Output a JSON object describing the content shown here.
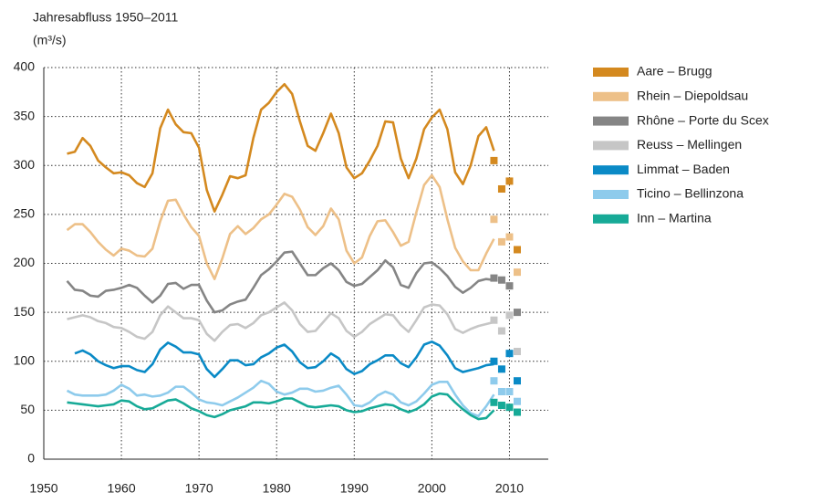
{
  "chart_data": {
    "type": "line",
    "title": "Jahresabfluss 1950–2011",
    "y_label": "(m³/s)",
    "xlim": [
      1950,
      2015
    ],
    "ylim": [
      0,
      400
    ],
    "xticks": [
      1950,
      1960,
      1970,
      1980,
      1990,
      2000,
      2010
    ],
    "yticks": [
      0,
      50,
      100,
      150,
      200,
      250,
      300,
      350,
      400
    ],
    "grid": true,
    "legend": "right",
    "x": [
      1953,
      1954,
      1955,
      1956,
      1957,
      1958,
      1959,
      1960,
      1961,
      1962,
      1963,
      1964,
      1965,
      1966,
      1967,
      1968,
      1969,
      1970,
      1971,
      1972,
      1973,
      1974,
      1975,
      1976,
      1977,
      1978,
      1979,
      1980,
      1981,
      1982,
      1983,
      1984,
      1985,
      1986,
      1987,
      1988,
      1989,
      1990,
      1991,
      1992,
      1993,
      1994,
      1995,
      1996,
      1997,
      1998,
      1999,
      2000,
      2001,
      2002,
      2003,
      2004,
      2005,
      2006,
      2007,
      2008
    ],
    "marker_x": [
      2008,
      2009,
      2010,
      2011
    ],
    "series": [
      {
        "name": "Aare – Brugg",
        "color": "#d4891f",
        "values": [
          312,
          314,
          328,
          320,
          305,
          298,
          292,
          293,
          290,
          282,
          278,
          292,
          338,
          357,
          342,
          334,
          333,
          318,
          275,
          253,
          270,
          289,
          287,
          290,
          328,
          357,
          364,
          375,
          383,
          373,
          345,
          320,
          315,
          333,
          353,
          333,
          298,
          287,
          292,
          305,
          320,
          345,
          344,
          307,
          287,
          307,
          337,
          349,
          357,
          337,
          293,
          281,
          300,
          330,
          339,
          315
        ],
        "marker_values": [
          305,
          276,
          284,
          214
        ]
      },
      {
        "name": "Rhein – Diepoldsau",
        "color": "#edc088",
        "values": [
          234,
          240,
          240,
          232,
          222,
          214,
          208,
          215,
          213,
          208,
          207,
          215,
          243,
          264,
          265,
          250,
          237,
          228,
          200,
          184,
          205,
          230,
          238,
          230,
          236,
          245,
          250,
          260,
          271,
          268,
          255,
          237,
          229,
          238,
          256,
          245,
          213,
          200,
          206,
          228,
          243,
          244,
          232,
          218,
          222,
          252,
          280,
          290,
          278,
          245,
          216,
          202,
          193,
          193,
          210,
          225
        ],
        "marker_values": [
          245,
          222,
          227,
          191
        ]
      },
      {
        "name": "Rhône – Porte du Scex",
        "color": "#858585",
        "values": [
          182,
          173,
          172,
          167,
          166,
          172,
          173,
          175,
          178,
          175,
          167,
          160,
          167,
          179,
          180,
          174,
          178,
          178,
          162,
          150,
          152,
          158,
          161,
          163,
          175,
          188,
          194,
          202,
          211,
          212,
          200,
          188,
          188,
          195,
          200,
          193,
          181,
          177,
          179,
          186,
          193,
          203,
          196,
          178,
          175,
          190,
          200,
          201,
          195,
          187,
          176,
          170,
          175,
          182,
          184,
          183
        ],
        "marker_values": [
          185,
          183,
          177,
          150
        ]
      },
      {
        "name": "Reuss – Mellingen",
        "color": "#c6c6c6",
        "values": [
          143,
          145,
          147,
          145,
          141,
          139,
          135,
          134,
          130,
          125,
          123,
          130,
          147,
          156,
          150,
          144,
          144,
          142,
          128,
          121,
          130,
          137,
          138,
          134,
          139,
          147,
          150,
          155,
          160,
          152,
          138,
          130,
          131,
          140,
          149,
          144,
          131,
          125,
          130,
          138,
          143,
          148,
          147,
          137,
          130,
          142,
          155,
          158,
          157,
          148,
          133,
          129,
          133,
          136,
          138,
          140
        ],
        "marker_values": [
          142,
          131,
          147,
          110
        ]
      },
      {
        "name": "Limmat – Baden",
        "color": "#0a8ac6",
        "values": [
          null,
          108,
          111,
          107,
          100,
          96,
          93,
          95,
          95,
          91,
          89,
          97,
          112,
          119,
          115,
          109,
          109,
          107,
          92,
          84,
          92,
          101,
          101,
          96,
          97,
          104,
          108,
          114,
          117,
          110,
          99,
          93,
          94,
          100,
          108,
          103,
          92,
          87,
          90,
          97,
          101,
          106,
          106,
          98,
          94,
          104,
          117,
          120,
          116,
          106,
          93,
          89,
          91,
          93,
          96,
          97
        ],
        "marker_values": [
          100,
          92,
          108,
          80
        ]
      },
      {
        "name": "Ticino – Bellinzona",
        "color": "#8ecbec",
        "values": [
          70,
          66,
          65,
          65,
          65,
          66,
          70,
          76,
          72,
          65,
          66,
          64,
          65,
          68,
          74,
          74,
          68,
          61,
          58,
          57,
          55,
          59,
          63,
          68,
          73,
          80,
          77,
          69,
          66,
          68,
          72,
          72,
          69,
          70,
          73,
          75,
          66,
          55,
          54,
          58,
          65,
          69,
          66,
          58,
          55,
          59,
          67,
          76,
          79,
          79,
          66,
          55,
          47,
          44,
          54,
          66
        ],
        "marker_values": [
          80,
          69,
          69,
          59
        ]
      },
      {
        "name": "Inn – Martina",
        "color": "#17aa97",
        "values": [
          58,
          57,
          56,
          55,
          54,
          55,
          56,
          60,
          59,
          54,
          51,
          52,
          56,
          60,
          61,
          57,
          52,
          49,
          45,
          43,
          46,
          50,
          52,
          54,
          58,
          58,
          57,
          59,
          62,
          62,
          58,
          54,
          53,
          54,
          55,
          54,
          50,
          48,
          49,
          52,
          54,
          56,
          55,
          51,
          48,
          51,
          56,
          64,
          67,
          66,
          58,
          51,
          45,
          41,
          42,
          50
        ],
        "marker_values": [
          58,
          55,
          53,
          48
        ]
      }
    ]
  }
}
